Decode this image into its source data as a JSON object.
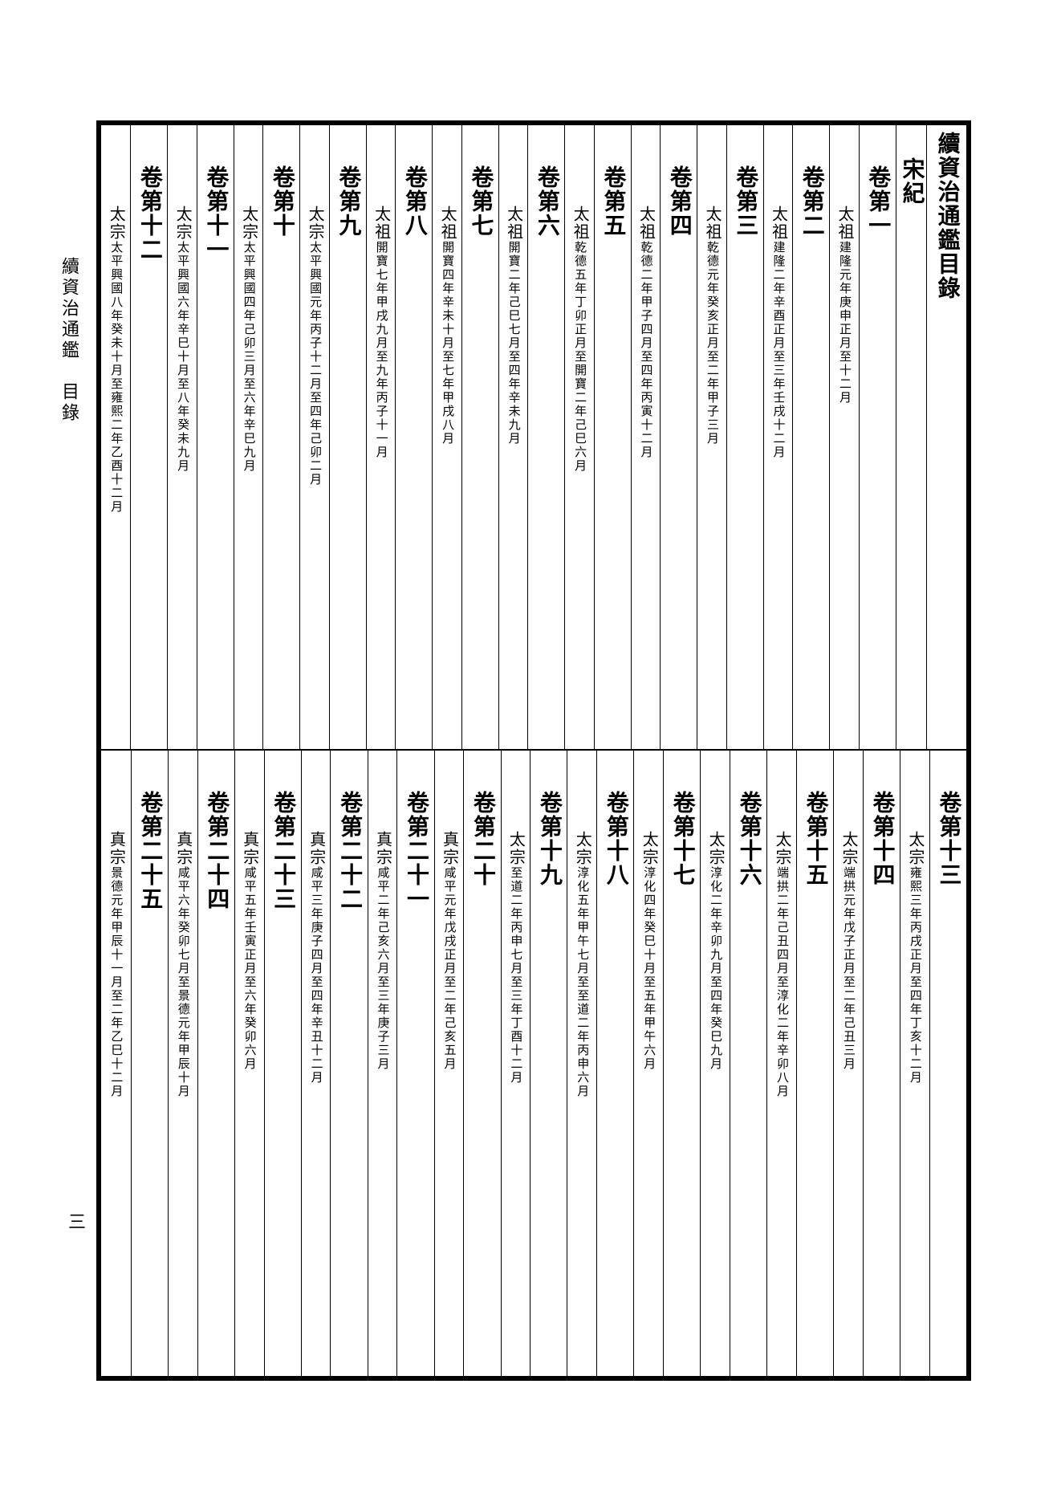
{
  "margin_title": "續資治通鑑　目錄",
  "page_number": "三",
  "book_title": "續資治通鑑目錄",
  "section": "宋紀",
  "upper_columns": [
    {
      "type": "title"
    },
    {
      "type": "section"
    },
    {
      "type": "heading",
      "text": "卷第一"
    },
    {
      "type": "entry",
      "main": "太祖",
      "sub": "建隆元年庚申正月至十二月"
    },
    {
      "type": "heading",
      "text": "卷第二"
    },
    {
      "type": "entry",
      "main": "太祖",
      "sub": "建隆二年辛酉正月至三年壬戌十二月"
    },
    {
      "type": "heading",
      "text": "卷第三"
    },
    {
      "type": "entry",
      "main": "太祖",
      "sub": "乾德元年癸亥正月至二年甲子三月"
    },
    {
      "type": "heading",
      "text": "卷第四"
    },
    {
      "type": "entry",
      "main": "太祖",
      "sub": "乾德二年甲子四月至四年丙寅十二月"
    },
    {
      "type": "heading",
      "text": "卷第五"
    },
    {
      "type": "entry",
      "main": "太祖",
      "sub": "乾德五年丁卯正月至開寶二年己巳六月"
    },
    {
      "type": "heading",
      "text": "卷第六"
    },
    {
      "type": "entry",
      "main": "太祖",
      "sub": "開寶二年己巳七月至四年辛未九月"
    },
    {
      "type": "heading",
      "text": "卷第七"
    },
    {
      "type": "entry",
      "main": "太祖",
      "sub": "開寶四年辛未十月至七年甲戌八月"
    },
    {
      "type": "heading",
      "text": "卷第八"
    },
    {
      "type": "entry",
      "main": "太祖",
      "sub": "開寶七年甲戌九月至九年丙子十一月"
    },
    {
      "type": "heading",
      "text": "卷第九"
    },
    {
      "type": "entry",
      "main": "太宗",
      "sub": "太平興國元年丙子十二月至四年己卯二月"
    },
    {
      "type": "heading",
      "text": "卷第十"
    },
    {
      "type": "entry",
      "main": "太宗",
      "sub": "太平興國四年己卯三月至六年辛巳九月"
    },
    {
      "type": "heading",
      "text": "卷第十一"
    },
    {
      "type": "entry",
      "main": "太宗",
      "sub": "太平興國六年辛巳十月至八年癸未九月"
    },
    {
      "type": "heading",
      "text": "卷第十二"
    },
    {
      "type": "entry",
      "main": "太宗",
      "sub": "太平興國八年癸未十月至雍熙二年乙酉十二月"
    }
  ],
  "lower_columns": [
    {
      "type": "heading",
      "text": "卷第十三"
    },
    {
      "type": "entry",
      "main": "太宗",
      "sub": "雍熙三年丙戌正月至四年丁亥十二月"
    },
    {
      "type": "heading",
      "text": "卷第十四"
    },
    {
      "type": "entry",
      "main": "太宗",
      "sub": "端拱元年戊子正月至二年己丑三月"
    },
    {
      "type": "heading",
      "text": "卷第十五"
    },
    {
      "type": "entry",
      "main": "太宗",
      "sub": "端拱二年己丑四月至淳化二年辛卯八月"
    },
    {
      "type": "heading",
      "text": "卷第十六"
    },
    {
      "type": "entry",
      "main": "太宗",
      "sub": "淳化二年辛卯九月至四年癸巳九月"
    },
    {
      "type": "heading",
      "text": "卷第十七"
    },
    {
      "type": "entry",
      "main": "太宗",
      "sub": "淳化四年癸巳十月至五年甲午六月"
    },
    {
      "type": "heading",
      "text": "卷第十八"
    },
    {
      "type": "entry",
      "main": "太宗",
      "sub": "淳化五年甲午七月至至道二年丙申六月"
    },
    {
      "type": "heading",
      "text": "卷第十九"
    },
    {
      "type": "entry",
      "main": "太宗",
      "sub": "至道二年丙申七月至三年丁酉十二月"
    },
    {
      "type": "heading",
      "text": "卷第二十"
    },
    {
      "type": "entry",
      "main": "真宗",
      "sub": "咸平元年戊戌正月至二年己亥五月"
    },
    {
      "type": "heading",
      "text": "卷第二十一"
    },
    {
      "type": "entry",
      "main": "真宗",
      "sub": "咸平二年己亥六月至三年庚子三月"
    },
    {
      "type": "heading",
      "text": "卷第二十二"
    },
    {
      "type": "entry",
      "main": "真宗",
      "sub": "咸平三年庚子四月至四年辛丑十二月"
    },
    {
      "type": "heading",
      "text": "卷第二十三"
    },
    {
      "type": "entry",
      "main": "真宗",
      "sub": "咸平五年壬寅正月至六年癸卯六月"
    },
    {
      "type": "heading",
      "text": "卷第二十四"
    },
    {
      "type": "entry",
      "main": "真宗",
      "sub": "咸平六年癸卯七月至景德元年甲辰十月"
    },
    {
      "type": "heading",
      "text": "卷第二十五"
    },
    {
      "type": "entry",
      "main": "真宗",
      "sub": "景德元年甲辰十一月至二年乙巳十二月"
    }
  ]
}
